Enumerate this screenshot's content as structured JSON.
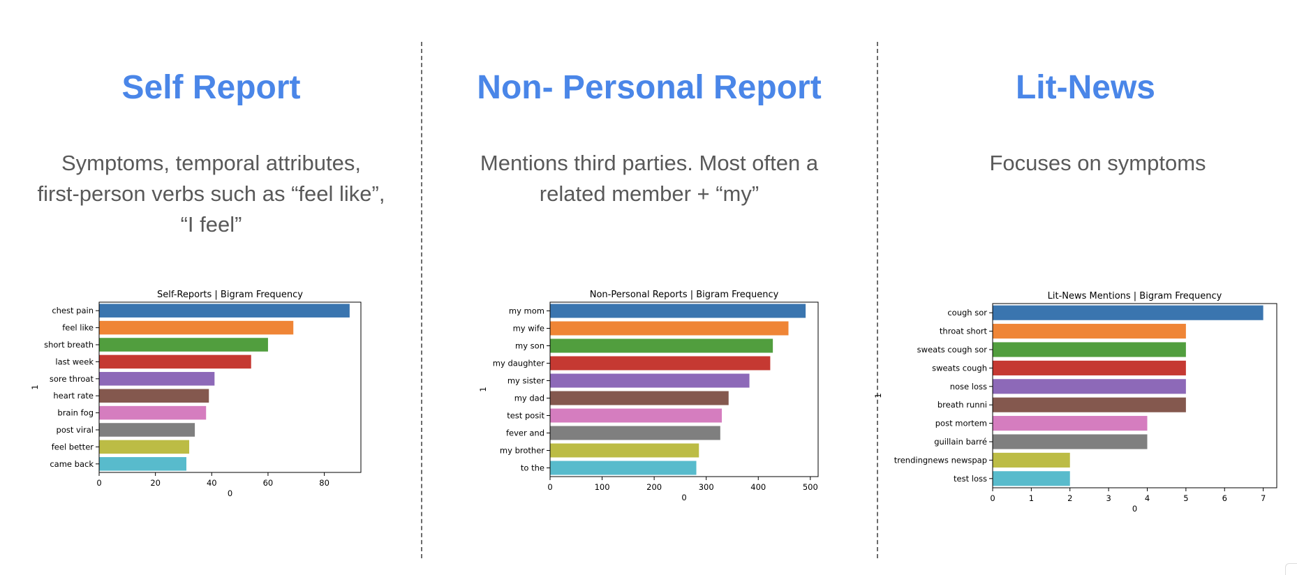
{
  "panels": [
    {
      "title": "Self Report",
      "description": [
        "Symptoms, temporal attributes,",
        "first-person verbs such as “feel like”,",
        "“I feel”"
      ]
    },
    {
      "title": "Non- Personal Report",
      "description": [
        "Mentions third parties. Most often a",
        "related member + “my”"
      ]
    },
    {
      "title": "Lit-News",
      "description": [
        "Focuses on symptoms"
      ]
    }
  ],
  "chart_data": [
    {
      "type": "bar",
      "orientation": "horizontal",
      "title": "Self-Reports | Bigram Frequency",
      "xlabel": "0",
      "ylabel": "1",
      "categories": [
        "chest pain",
        "feel like",
        "short breath",
        "last week",
        "sore throat",
        "heart rate",
        "brain fog",
        "post viral",
        "feel better",
        "came back"
      ],
      "values": [
        89,
        69,
        60,
        54,
        41,
        39,
        38,
        34,
        32,
        31
      ],
      "xlim": [
        0,
        93
      ],
      "xticks": [
        0,
        20,
        40,
        60,
        80
      ],
      "grid": false
    },
    {
      "type": "bar",
      "orientation": "horizontal",
      "title": "Non-Personal Reports | Bigram Frequency",
      "xlabel": "0",
      "ylabel": "1",
      "categories": [
        "my mom",
        "my wife",
        "my son",
        "my daughter",
        "my sister",
        "my dad",
        "test posit",
        "fever and",
        "my brother",
        "to the"
      ],
      "values": [
        491,
        458,
        428,
        423,
        383,
        343,
        330,
        327,
        286,
        281
      ],
      "xlim": [
        0,
        515
      ],
      "xticks": [
        0,
        100,
        200,
        300,
        400,
        500
      ],
      "grid": false
    },
    {
      "type": "bar",
      "orientation": "horizontal",
      "title": "Lit-News Mentions | Bigram Frequency",
      "xlabel": "0",
      "ylabel": "1",
      "categories": [
        "cough sor",
        "throat short",
        "sweats cough sor",
        "sweats cough",
        "nose loss",
        "breath runni",
        "post mortem",
        "guillain barré",
        "trendingnews newspap",
        "test loss"
      ],
      "values": [
        7,
        5,
        5,
        5,
        5,
        5,
        4,
        4,
        2,
        2
      ],
      "xlim": [
        0,
        7.35
      ],
      "xticks": [
        0,
        1,
        2,
        3,
        4,
        5,
        6,
        7
      ],
      "grid": false
    }
  ],
  "colors": {
    "title": "#4a86e8",
    "description": "#595959",
    "bars": [
      "#3a75af",
      "#ef8536",
      "#519e3e",
      "#c53932",
      "#8d69b8",
      "#84584e",
      "#d57dbf",
      "#7f7f7f",
      "#bcbc45",
      "#58bbcc"
    ]
  }
}
